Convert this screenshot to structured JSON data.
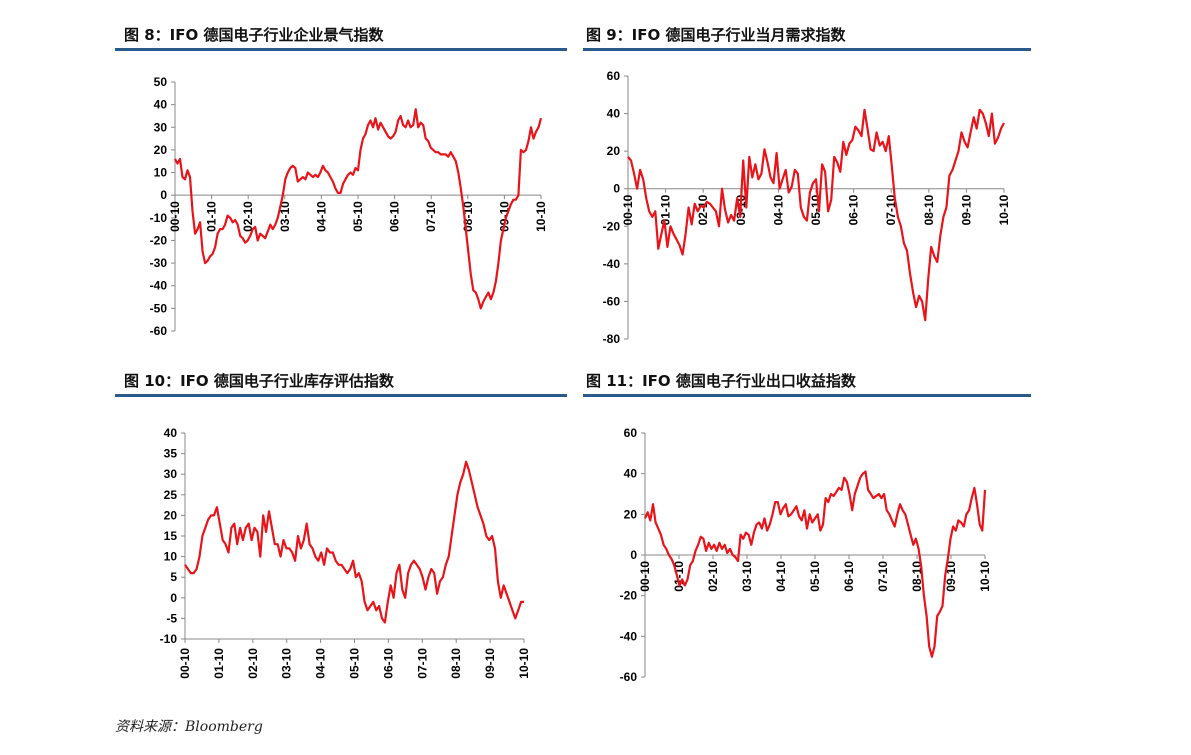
{
  "titles": {
    "c1": "图 8：IFO 德国电子行业企业景气指数",
    "c2": "图 9：IFO 德国电子行业当月需求指数",
    "c3": "图 10：IFO 德国电子行业库存评估指数",
    "c4": "图 11：IFO 德国电子行业出口收益指数"
  },
  "source": "资料来源：Bloomberg",
  "colors": {
    "line": "#e8141a",
    "rule": "#2a5a8c",
    "axis": "#888888"
  },
  "chart_data": [
    {
      "type": "line",
      "title": "图 8：IFO 德国电子行业企业景气指数",
      "x_labels": [
        "00-10",
        "01-10",
        "02-10",
        "03-10",
        "04-10",
        "05-10",
        "06-10",
        "07-10",
        "08-10",
        "09-10",
        "10-10"
      ],
      "yticks": [
        50,
        40,
        30,
        20,
        10,
        0,
        -10,
        -20,
        -30,
        -40,
        -50,
        -60
      ],
      "ylim": [
        -60,
        50
      ],
      "grid": false,
      "series": [
        {
          "values": [
            16,
            14,
            16,
            8,
            7,
            11,
            8,
            -7,
            -17,
            -15,
            -12,
            -25,
            -30,
            -29,
            -27,
            -26,
            -23,
            -17,
            -15,
            -15,
            -13,
            -9,
            -10,
            -12,
            -11,
            -13,
            -18,
            -19,
            -21,
            -20,
            -18,
            -15,
            -14,
            -20,
            -17,
            -18,
            -19,
            -16,
            -13,
            -15,
            -13,
            -10,
            -5,
            0,
            7,
            10,
            12,
            13,
            12,
            6,
            7,
            8,
            7,
            10,
            9,
            8,
            9,
            8,
            10,
            13,
            11,
            10,
            8,
            6,
            3,
            1,
            1,
            5,
            7,
            9,
            10,
            9,
            12,
            11,
            20,
            25,
            27,
            31,
            33,
            30,
            34,
            29,
            32,
            30,
            28,
            26,
            25,
            26,
            28,
            33,
            35,
            31,
            30,
            33,
            30,
            31,
            38,
            30,
            32,
            31,
            25,
            24,
            21,
            20,
            19,
            19,
            18,
            18,
            18,
            17,
            19,
            17,
            15,
            10,
            3,
            -5,
            -15,
            -25,
            -35,
            -42,
            -43,
            -46,
            -50,
            -47,
            -45,
            -43,
            -46,
            -43,
            -38,
            -30,
            -20,
            -15,
            -10,
            -7,
            -4,
            -2,
            -2,
            0,
            20,
            19,
            20,
            24,
            30,
            25,
            28,
            30,
            34
          ]
        }
      ]
    },
    {
      "type": "line",
      "title": "图 9：IFO 德国电子行业当月需求指数",
      "x_labels": [
        "00-10",
        "01-10",
        "02-10",
        "03-10",
        "04-10",
        "05-10",
        "06-10",
        "07-10",
        "08-10",
        "09-10",
        "10-10"
      ],
      "yticks": [
        60,
        40,
        20,
        0,
        -20,
        -40,
        -60,
        -80
      ],
      "ylim": [
        -80,
        60
      ],
      "grid": false,
      "series": [
        {
          "values": [
            17,
            15,
            8,
            0,
            10,
            5,
            -5,
            -12,
            -15,
            -12,
            -32,
            -24,
            -17,
            -31,
            -20,
            -24,
            -27,
            -30,
            -35,
            -24,
            -10,
            -19,
            -8,
            -12,
            -9,
            -10,
            -7,
            -8,
            -10,
            -12,
            -20,
            0,
            -11,
            -18,
            -14,
            -17,
            -5,
            -15,
            15,
            -10,
            17,
            6,
            13,
            5,
            8,
            21,
            14,
            6,
            3,
            19,
            0,
            5,
            10,
            -2,
            1,
            10,
            8,
            -10,
            -15,
            -17,
            -2,
            3,
            5,
            -12,
            13,
            9,
            -12,
            -6,
            17,
            14,
            9,
            25,
            18,
            24,
            26,
            33,
            31,
            28,
            42,
            32,
            21,
            20,
            30,
            23,
            25,
            20,
            28,
            12,
            -5,
            -15,
            -20,
            -29,
            -33,
            -45,
            -55,
            -63,
            -57,
            -60,
            -70,
            -48,
            -31,
            -36,
            -39,
            -25,
            -15,
            -10,
            7,
            10,
            15,
            20,
            30,
            25,
            22,
            30,
            38,
            32,
            42,
            40,
            35,
            28,
            40,
            24,
            27,
            32,
            35
          ]
        }
      ]
    },
    {
      "type": "line",
      "title": "图 10：IFO 德国电子行业库存评估指数",
      "x_labels": [
        "00-10",
        "01-10",
        "02-10",
        "03-10",
        "04-10",
        "05-10",
        "06-10",
        "07-10",
        "08-10",
        "09-10",
        "10-10"
      ],
      "yticks": [
        40,
        35,
        30,
        25,
        20,
        15,
        10,
        5,
        0,
        -5,
        -10
      ],
      "ylim": [
        -10,
        40
      ],
      "grid": false,
      "series": [
        {
          "values": [
            8,
            7,
            6,
            6,
            7,
            10,
            15,
            17,
            19,
            20,
            20,
            22,
            18,
            14,
            13,
            11,
            17,
            18,
            13,
            17,
            14,
            17,
            18,
            14,
            17,
            16,
            10,
            20,
            16,
            21,
            17,
            13,
            13,
            10,
            14,
            12,
            12,
            11,
            9,
            15,
            12,
            14,
            18,
            13,
            12,
            10,
            9,
            11,
            8,
            12,
            11,
            11,
            9,
            8,
            8,
            7,
            6,
            7,
            9,
            5,
            6,
            4,
            -1,
            -3,
            -2,
            -1,
            -3,
            -2,
            -5,
            -6,
            -1,
            3,
            0,
            6,
            8,
            2,
            0,
            6,
            8,
            9,
            8,
            7,
            5,
            2,
            5,
            7,
            6,
            1,
            4,
            5,
            8,
            10,
            15,
            20,
            25,
            28,
            30,
            33,
            31,
            28,
            25,
            22,
            20,
            18,
            15,
            14,
            15,
            12,
            4,
            0,
            3,
            1,
            -1,
            -3,
            -5,
            -3,
            -1,
            -1
          ]
        }
      ]
    },
    {
      "type": "line",
      "title": "图 11：IFO 德国电子行业出口收益指数",
      "x_labels": [
        "00-10",
        "01-10",
        "02-10",
        "03-10",
        "04-10",
        "05-10",
        "06-10",
        "07-10",
        "08-10",
        "09-10",
        "10-10"
      ],
      "yticks": [
        60,
        40,
        20,
        0,
        -20,
        -40,
        -60
      ],
      "ylim": [
        -60,
        60
      ],
      "grid": false,
      "series": [
        {
          "values": [
            18,
            21,
            17,
            25,
            16,
            13,
            10,
            5,
            3,
            0,
            -2,
            -5,
            -10,
            -15,
            -12,
            -15,
            -12,
            -5,
            -3,
            2,
            5,
            9,
            8,
            2,
            6,
            3,
            5,
            2,
            6,
            3,
            5,
            1,
            3,
            0,
            -1,
            -3,
            10,
            8,
            11,
            10,
            5,
            11,
            15,
            16,
            13,
            18,
            12,
            15,
            20,
            26,
            26,
            20,
            23,
            25,
            19,
            20,
            22,
            24,
            19,
            17,
            22,
            13,
            20,
            16,
            18,
            20,
            12,
            15,
            28,
            26,
            30,
            29,
            31,
            33,
            32,
            38,
            36,
            30,
            22,
            30,
            34,
            38,
            40,
            41,
            32,
            30,
            28,
            29,
            30,
            28,
            30,
            22,
            20,
            17,
            14,
            20,
            25,
            22,
            20,
            15,
            10,
            5,
            8,
            3,
            -6,
            -20,
            -30,
            -45,
            -50,
            -45,
            -30,
            -28,
            -25,
            -10,
            -2,
            8,
            14,
            12,
            17,
            16,
            14,
            20,
            22,
            28,
            33,
            25,
            15,
            12,
            32
          ]
        }
      ]
    }
  ]
}
